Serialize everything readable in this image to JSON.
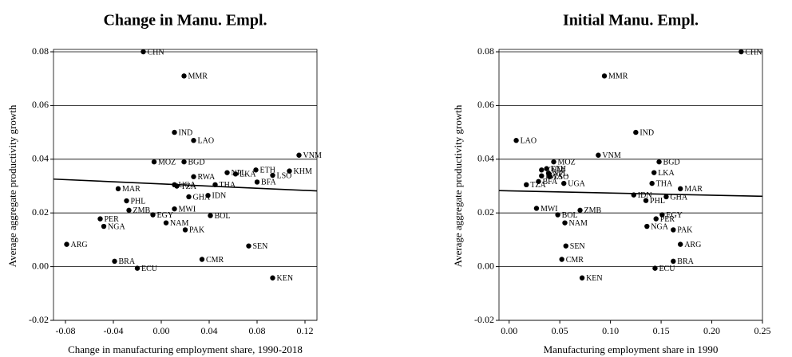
{
  "chart_data": [
    {
      "type": "scatter",
      "title": "Change in Manu. Empl.",
      "x_label": "Change in manufacturing employment share, 1990-2018",
      "y_label": "Average aggregate productivity growth",
      "xlim": [
        -0.09,
        0.13
      ],
      "ylim": [
        -0.02,
        0.08
      ],
      "xticks": [
        -0.08,
        -0.04,
        {
          "value": 0,
          "label": "0.00"
        },
        0.04,
        0.08,
        0.12
      ],
      "yticks": [
        -0.02,
        {
          "value": 0,
          "label": "0.00"
        },
        0.02,
        0.04,
        0.06,
        0.08
      ],
      "grid": true,
      "color": "#000000",
      "labels": [
        "CHN",
        "MMR",
        "IND",
        "LAO",
        "VNM",
        "MOZ",
        "BGD",
        "KHM",
        "LSO",
        "ETH",
        "NPL",
        "LKA",
        "BFA",
        "RWA",
        "UGA",
        "TZA",
        "THA",
        "MAR",
        "PHL",
        "ZMB",
        "GHA",
        "IDN",
        "MWI",
        "EGY",
        "BOL",
        "PER",
        "NGA",
        "NAM",
        "PAK",
        "ARG",
        "SEN",
        "CMR",
        "BRA",
        "ECU",
        "KEN"
      ],
      "x": [
        -0.015,
        0.019,
        0.011,
        0.027,
        0.115,
        -0.006,
        0.019,
        0.107,
        0.093,
        0.079,
        0.055,
        0.062,
        0.08,
        0.027,
        0.011,
        0.013,
        0.045,
        -0.036,
        -0.029,
        -0.027,
        0.023,
        0.039,
        0.011,
        -0.007,
        0.041,
        -0.051,
        -0.048,
        0.004,
        0.02,
        -0.079,
        0.073,
        0.034,
        -0.039,
        -0.02,
        0.093
      ],
      "y": [
        0.08,
        0.071,
        0.05,
        0.047,
        0.0415,
        0.039,
        0.039,
        0.0356,
        0.034,
        0.036,
        0.035,
        0.0345,
        0.0315,
        0.0335,
        0.0305,
        0.03,
        0.0305,
        0.029,
        0.0245,
        0.021,
        0.026,
        0.0265,
        0.0215,
        0.0193,
        0.019,
        0.0178,
        0.015,
        0.0163,
        0.0137,
        0.0083,
        0.0077,
        0.0027,
        0.002,
        -0.0006,
        -0.0042
      ],
      "fit": {
        "x": [
          -0.09,
          0.13
        ],
        "y": [
          0.0326,
          0.0282
        ]
      }
    },
    {
      "type": "scatter",
      "title": "Initial Manu. Empl.",
      "x_label": "Manufacturing employment share in 1990",
      "y_label": "Average aggregate productivity growth",
      "xlim": [
        -0.01,
        0.25
      ],
      "ylim": [
        -0.02,
        0.08
      ],
      "xticks": [
        {
          "value": 0,
          "label": "0.00"
        },
        0.05,
        {
          "value": 0.1,
          "label": "0.10"
        },
        0.15,
        {
          "value": 0.2,
          "label": "0.20"
        },
        0.25
      ],
      "yticks": [
        -0.02,
        {
          "value": 0,
          "label": "0.00"
        },
        0.02,
        0.04,
        0.06,
        0.08
      ],
      "grid": true,
      "color": "#000000",
      "labels": [
        "CHN",
        "MMR",
        "IND",
        "LAO",
        "VNM",
        "MOZ",
        "BGD",
        "KHM",
        "ETH",
        "NPL",
        "RWA",
        "LSO",
        "LKA",
        "BFA",
        "TZA",
        "UGA",
        "THA",
        "MAR",
        "GHA",
        "IDN",
        "PHL",
        "MWI",
        "ZMB",
        "EGY",
        "PER",
        "BOL",
        "NAM",
        "NGA",
        "PAK",
        "ARG",
        "SEN",
        "CMR",
        "BRA",
        "ECU",
        "KEN"
      ],
      "x": [
        0.229,
        0.094,
        0.125,
        0.007,
        0.088,
        0.044,
        0.148,
        0.032,
        0.037,
        0.039,
        0.032,
        0.04,
        0.143,
        0.029,
        0.017,
        0.054,
        0.141,
        0.169,
        0.155,
        0.123,
        0.135,
        0.027,
        0.07,
        0.151,
        0.145,
        0.048,
        0.055,
        0.136,
        0.162,
        0.169,
        0.056,
        0.052,
        0.162,
        0.144,
        0.072
      ],
      "y": [
        0.08,
        0.071,
        0.05,
        0.047,
        0.0415,
        0.039,
        0.039,
        0.036,
        0.0365,
        0.0347,
        0.0338,
        0.0335,
        0.035,
        0.0317,
        0.0305,
        0.031,
        0.031,
        0.029,
        0.026,
        0.0267,
        0.0246,
        0.0217,
        0.021,
        0.0193,
        0.0178,
        0.0193,
        0.0163,
        0.015,
        0.0137,
        0.0083,
        0.0077,
        0.0027,
        0.002,
        -0.0006,
        -0.0042
      ],
      "fit": {
        "x": [
          -0.01,
          0.25
        ],
        "y": [
          0.0283,
          0.0262
        ]
      }
    }
  ]
}
